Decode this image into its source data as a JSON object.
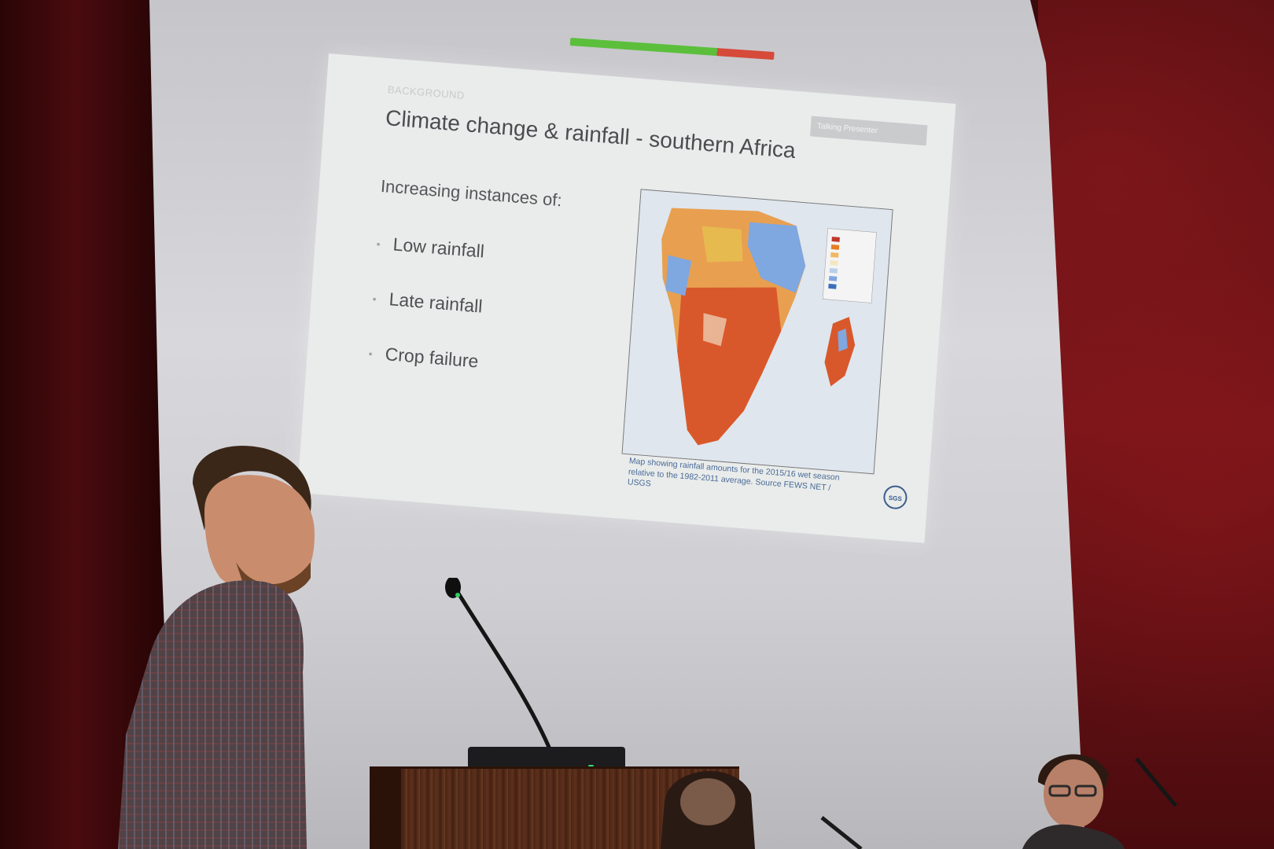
{
  "slide": {
    "section_label": "BACKGROUND",
    "title": "Climate change & rainfall - southern Africa",
    "tag_label": "Talking Presenter",
    "intro": "Increasing instances of:",
    "bullets": [
      "Low rainfall",
      "Late rainfall",
      "Crop failure"
    ],
    "map_caption": "Map showing rainfall amounts for the 2015/16 wet season relative to the 1982-2011 average. Source FEWS NET / USGS",
    "logo_text": "SGS"
  },
  "colors": {
    "wall_red": "#5c1013",
    "screen_gray": "#d0d0d4",
    "slide_bg": "#e9ecea",
    "map_dry": "#d9582b",
    "map_wet": "#7fa7e0",
    "podium_wood": "#5d301c"
  }
}
